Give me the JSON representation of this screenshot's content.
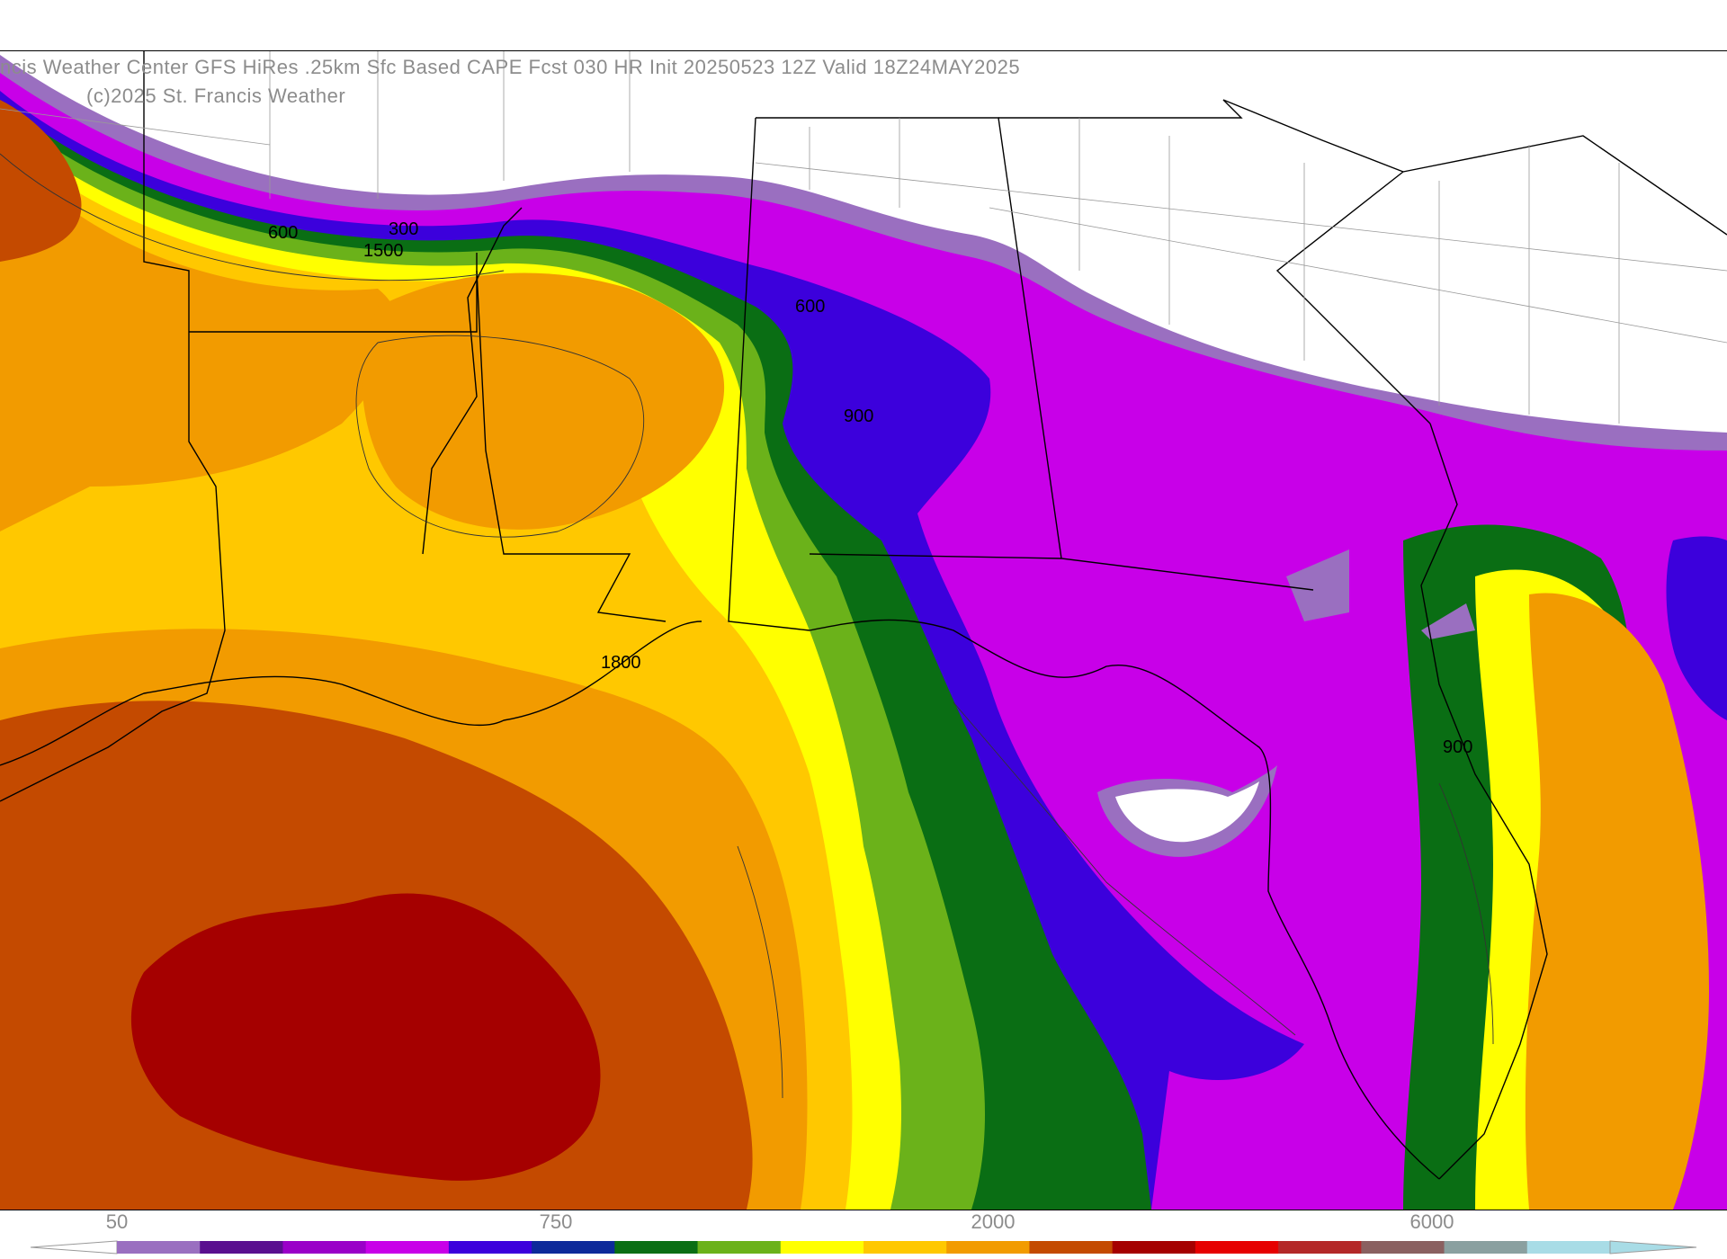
{
  "header": {
    "title": "ncis Weather Center GFS HiRes .25km Sfc Based CAPE  Fcst 030 HR Init 20250523 12Z  Valid 18Z24MAY2025",
    "copyright": "(c)2025 St. Francis Weather"
  },
  "contour_labels": [
    "600",
    "300",
    "1500",
    "600",
    "900",
    "1800",
    "900"
  ],
  "colorbar": {
    "tick_labels": [
      "50",
      "750",
      "2000",
      "6000"
    ],
    "colors": [
      "#9a6fc0",
      "#5a0f8f",
      "#9a00c8",
      "#c800e8",
      "#3c00dc",
      "#0d2a9a",
      "#0a6e14",
      "#6bb21a",
      "#ffff00",
      "#ffc800",
      "#f29b00",
      "#c44a00",
      "#a50000",
      "#e60000",
      "#b42828",
      "#8a6060",
      "#8aa0a0",
      "#a8dce6"
    ]
  }
}
